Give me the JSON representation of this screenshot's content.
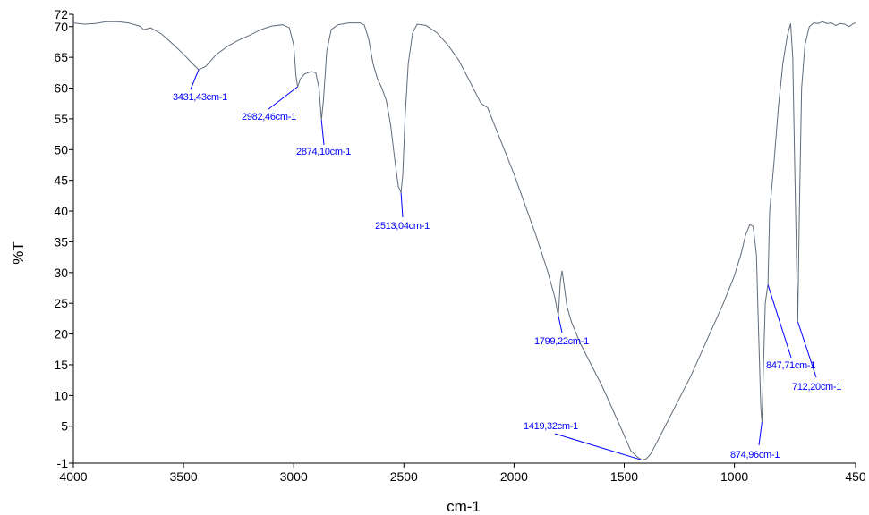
{
  "chart_data": {
    "type": "line",
    "xlabel": "cm-1",
    "ylabel": "%T",
    "xlim": [
      4000,
      450
    ],
    "ylim": [
      -1,
      72
    ],
    "x_reversed": true,
    "grid": false,
    "x_ticks": [
      "4000",
      "3500",
      "3000",
      "2500",
      "2000",
      "1500",
      "1000",
      "450"
    ],
    "x_tick_values": [
      4000,
      3500,
      3000,
      2500,
      2000,
      1500,
      1000,
      450
    ],
    "y_ticks": [
      "-1",
      "5",
      "10",
      "15",
      "20",
      "25",
      "30",
      "35",
      "40",
      "45",
      "50",
      "55",
      "60",
      "65",
      "70",
      "72"
    ],
    "y_tick_values": [
      -1,
      5,
      10,
      15,
      20,
      25,
      30,
      35,
      40,
      45,
      50,
      55,
      60,
      65,
      70,
      72
    ],
    "line_color": "#5f6b7a",
    "annotation_color": "#0000ff",
    "series": [
      {
        "points": [
          [
            4000,
            70.6
          ],
          [
            3950,
            70.4
          ],
          [
            3900,
            70.5
          ],
          [
            3850,
            70.8
          ],
          [
            3800,
            70.8
          ],
          [
            3750,
            70.6
          ],
          [
            3700,
            70.1
          ],
          [
            3680,
            69.5
          ],
          [
            3650,
            69.8
          ],
          [
            3600,
            68.8
          ],
          [
            3550,
            67.2
          ],
          [
            3500,
            65.5
          ],
          [
            3460,
            64.0
          ],
          [
            3431,
            63.0
          ],
          [
            3400,
            63.5
          ],
          [
            3350,
            65.5
          ],
          [
            3300,
            66.8
          ],
          [
            3250,
            67.8
          ],
          [
            3200,
            68.6
          ],
          [
            3150,
            69.5
          ],
          [
            3100,
            70.1
          ],
          [
            3050,
            70.3
          ],
          [
            3020,
            69.8
          ],
          [
            3000,
            67.0
          ],
          [
            2990,
            62.0
          ],
          [
            2982,
            60.2
          ],
          [
            2970,
            61.5
          ],
          [
            2950,
            62.3
          ],
          [
            2920,
            62.7
          ],
          [
            2900,
            62.5
          ],
          [
            2885,
            60.0
          ],
          [
            2874,
            54.8
          ],
          [
            2865,
            58.0
          ],
          [
            2850,
            66.0
          ],
          [
            2830,
            69.5
          ],
          [
            2800,
            70.3
          ],
          [
            2750,
            70.6
          ],
          [
            2700,
            70.6
          ],
          [
            2680,
            70.3
          ],
          [
            2660,
            68.0
          ],
          [
            2640,
            64.0
          ],
          [
            2620,
            61.5
          ],
          [
            2600,
            60.0
          ],
          [
            2580,
            58.0
          ],
          [
            2560,
            54.0
          ],
          [
            2540,
            48.0
          ],
          [
            2525,
            44.0
          ],
          [
            2513,
            43.0
          ],
          [
            2505,
            46.0
          ],
          [
            2495,
            55.0
          ],
          [
            2480,
            64.0
          ],
          [
            2460,
            69.0
          ],
          [
            2440,
            70.4
          ],
          [
            2400,
            70.2
          ],
          [
            2350,
            69.0
          ],
          [
            2300,
            67.0
          ],
          [
            2250,
            64.5
          ],
          [
            2200,
            61.0
          ],
          [
            2150,
            57.5
          ],
          [
            2120,
            56.8
          ],
          [
            2100,
            55.0
          ],
          [
            2050,
            50.5
          ],
          [
            2000,
            46.0
          ],
          [
            1950,
            41.0
          ],
          [
            1900,
            36.0
          ],
          [
            1850,
            30.5
          ],
          [
            1815,
            26.0
          ],
          [
            1805,
            24.0
          ],
          [
            1799,
            23.0
          ],
          [
            1790,
            28.5
          ],
          [
            1782,
            30.3
          ],
          [
            1775,
            28.5
          ],
          [
            1760,
            24.5
          ],
          [
            1740,
            22.0
          ],
          [
            1700,
            18.5
          ],
          [
            1650,
            15.0
          ],
          [
            1600,
            11.5
          ],
          [
            1550,
            7.5
          ],
          [
            1500,
            3.5
          ],
          [
            1470,
            1.0
          ],
          [
            1440,
            0.0
          ],
          [
            1419,
            -0.5
          ],
          [
            1400,
            -0.3
          ],
          [
            1380,
            0.5
          ],
          [
            1350,
            2.5
          ],
          [
            1300,
            6.0
          ],
          [
            1250,
            9.5
          ],
          [
            1200,
            13.0
          ],
          [
            1150,
            17.0
          ],
          [
            1100,
            21.0
          ],
          [
            1050,
            25.0
          ],
          [
            1000,
            29.5
          ],
          [
            970,
            33.0
          ],
          [
            950,
            36.0
          ],
          [
            930,
            37.8
          ],
          [
            915,
            37.5
          ],
          [
            900,
            33.0
          ],
          [
            890,
            20.0
          ],
          [
            880,
            8.0
          ],
          [
            874.96,
            5.7
          ],
          [
            868,
            15.0
          ],
          [
            860,
            25.0
          ],
          [
            852,
            27.0
          ],
          [
            847.71,
            28.0
          ],
          [
            840,
            40.0
          ],
          [
            820,
            48.0
          ],
          [
            800,
            57.0
          ],
          [
            780,
            64.0
          ],
          [
            760,
            68.5
          ],
          [
            745,
            70.5
          ],
          [
            735,
            65.0
          ],
          [
            725,
            45.0
          ],
          [
            712.2,
            22.0
          ],
          [
            705,
            40.0
          ],
          [
            695,
            60.0
          ],
          [
            680,
            67.0
          ],
          [
            660,
            70.0
          ],
          [
            640,
            70.6
          ],
          [
            620,
            70.5
          ],
          [
            600,
            70.8
          ],
          [
            580,
            70.5
          ],
          [
            560,
            70.6
          ],
          [
            540,
            70.2
          ],
          [
            520,
            70.5
          ],
          [
            500,
            70.4
          ],
          [
            480,
            70.0
          ],
          [
            460,
            70.5
          ],
          [
            450,
            70.6
          ]
        ]
      }
    ],
    "annotations": [
      {
        "label": "3431,43cm-1",
        "peak": [
          3431.43,
          63.0
        ]
      },
      {
        "label": "2982,46cm-1",
        "peak": [
          2982.46,
          60.2
        ]
      },
      {
        "label": "2874,10cm-1",
        "peak": [
          2874.1,
          54.8
        ]
      },
      {
        "label": "2513,04cm-1",
        "peak": [
          2513.04,
          43.0
        ]
      },
      {
        "label": "1799,22cm-1",
        "peak": [
          1799.22,
          23.0
        ]
      },
      {
        "label": "1419,32cm-1",
        "peak": [
          1419.32,
          -0.5
        ]
      },
      {
        "label": "874,96cm-1",
        "peak": [
          874.96,
          5.7
        ]
      },
      {
        "label": "847,71cm-1",
        "peak": [
          847.71,
          28.0
        ]
      },
      {
        "label": "712,20cm-1",
        "peak": [
          712.2,
          22.0
        ]
      }
    ]
  }
}
